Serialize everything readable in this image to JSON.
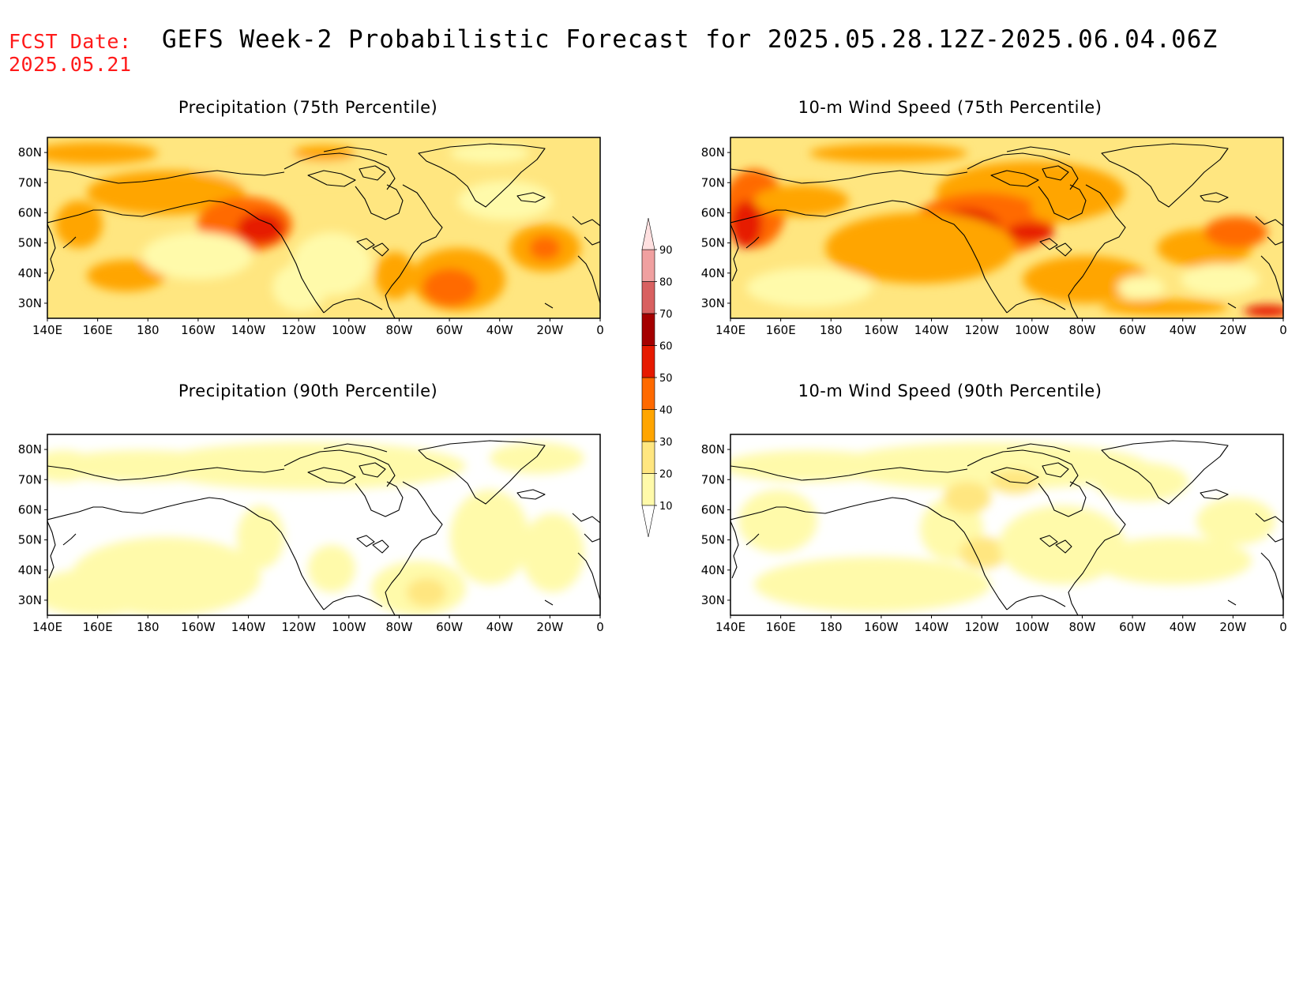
{
  "header": {
    "fcst_label": "FCST Date:",
    "fcst_date": "2025.05.21",
    "title": "GEFS Week-2 Probabilistic Forecast for 2025.05.28.12Z-2025.06.04.06Z"
  },
  "panels": [
    {
      "id": "precip75",
      "title": "Precipitation (75th Percentile)"
    },
    {
      "id": "wind75",
      "title": "10-m Wind Speed (75th Percentile)"
    },
    {
      "id": "precip90",
      "title": "Precipitation (90th Percentile)"
    },
    {
      "id": "wind90",
      "title": "10-m Wind Speed (90th Percentile)"
    }
  ],
  "axes": {
    "lat_labels": [
      "80N",
      "70N",
      "60N",
      "50N",
      "40N",
      "30N"
    ],
    "lat_values": [
      80,
      70,
      60,
      50,
      40,
      30
    ],
    "lon_labels": [
      "140E",
      "160E",
      "180",
      "160W",
      "140W",
      "120W",
      "100W",
      "80W",
      "60W",
      "40W",
      "20W",
      "0"
    ],
    "lon_values": [
      140,
      160,
      180,
      200,
      220,
      240,
      260,
      280,
      300,
      320,
      340,
      360
    ],
    "lon_range": [
      140,
      360
    ],
    "lat_range": [
      25,
      85
    ]
  },
  "colorbar": {
    "labels": [
      "10",
      "20",
      "30",
      "40",
      "50",
      "60",
      "70",
      "80",
      "90"
    ],
    "colors": [
      "#fffaaa",
      "#ffe680",
      "#ffa500",
      "#ff6a00",
      "#e61a00",
      "#a50000",
      "#d86060",
      "#f0a0a0",
      "#ffe0e0"
    ]
  }
}
